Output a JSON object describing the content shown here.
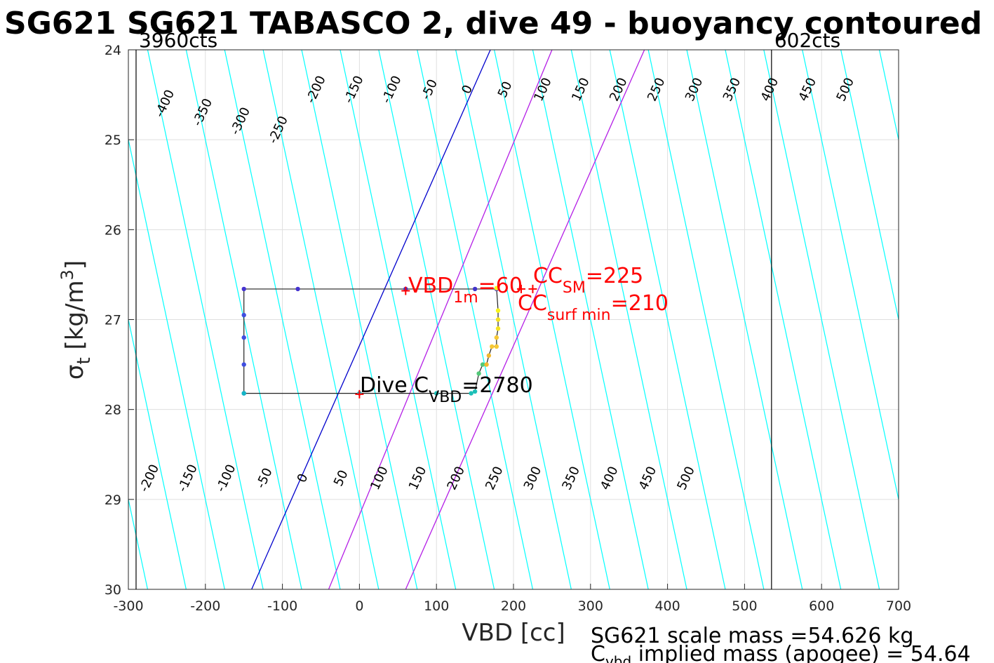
{
  "chart_data": {
    "type": "line",
    "title": "SG621 SG621 TABASCO 2, dive 49 - buoyancy contoured",
    "xlabel": "VBD [cc]",
    "ylabel_main": "σ",
    "ylabel_sub": "t",
    "ylabel_unit_pre": " [kg/m",
    "ylabel_unit_sup": "3",
    "ylabel_unit_post": "]",
    "xlim": [
      -300,
      700
    ],
    "ylim": [
      24,
      30
    ],
    "y_reversed": true,
    "grid": true,
    "xticks": [
      -300,
      -200,
      -100,
      0,
      100,
      200,
      300,
      400,
      500,
      600,
      700
    ],
    "xtick_labels": [
      "-300",
      "-200",
      "-100",
      "0",
      "100",
      "200",
      "300",
      "400",
      "500",
      "600",
      "700"
    ],
    "yticks": [
      24,
      25,
      26,
      27,
      28,
      29,
      30
    ],
    "ytick_labels": [
      "24",
      "25",
      "26",
      "27",
      "28",
      "29",
      "30"
    ],
    "vbd_limits": [
      {
        "x": -290,
        "label": "3960cts"
      },
      {
        "x": 535,
        "label": "602cts"
      }
    ],
    "contour_top_values": [
      -400,
      -350,
      -300,
      -250,
      -200,
      -150,
      -100,
      -50,
      0,
      50,
      100,
      150,
      200,
      250,
      300,
      350,
      400,
      450,
      500
    ],
    "contour_top_labels": [
      "-400",
      "-350",
      "-300",
      "-250",
      "-200",
      "-150",
      "-100",
      "-50",
      "0",
      "50",
      "100",
      "150",
      "200",
      "250",
      "300",
      "350",
      "400",
      "450",
      "500"
    ],
    "contour_bottom_values": [
      -200,
      -150,
      -100,
      -50,
      0,
      50,
      100,
      150,
      200,
      250,
      300,
      350,
      400,
      450,
      500
    ],
    "contour_bottom_labels": [
      "-200",
      "-150",
      "-100",
      "-50",
      "0",
      "50",
      "100",
      "150",
      "200",
      "250",
      "300",
      "350",
      "400",
      "450",
      "500"
    ],
    "contour_x_at_sigma24": [
      -425,
      -375,
      -325,
      -275,
      -225,
      -175,
      -125,
      -75,
      -25,
      25,
      75,
      125,
      175,
      225,
      275,
      325,
      375,
      425,
      475,
      525,
      575,
      625,
      675,
      725
    ],
    "contour_x_at_sigma30": [
      -275,
      -225,
      -175,
      -125,
      -75,
      -25,
      25,
      75,
      125,
      175,
      225,
      275,
      325,
      375,
      425,
      475,
      525,
      575,
      625,
      675,
      725
    ],
    "colors": {
      "contour": "#00ffff",
      "zero_contour": "#0000cc",
      "highlight_contour": "#b41ee6",
      "limit_line": "#000000",
      "marker": "#ff0000",
      "grid": "#dfdfdf"
    },
    "zero_line": {
      "x_sigma24": 170,
      "x_sigma30": -140
    },
    "highlight_lines": [
      {
        "x_sigma24": 250,
        "x_sigma30": -40
      },
      {
        "x_sigma24": 370,
        "x_sigma30": 60
      }
    ],
    "dive_track": {
      "vbd": [
        178,
        150,
        60,
        -80,
        -150,
        -150,
        -150,
        -150,
        -150,
        -150,
        -150,
        0,
        100,
        145,
        150,
        155,
        160,
        165,
        168,
        172,
        178,
        178,
        180,
        180,
        180,
        178
      ],
      "sigma": [
        26.66,
        26.66,
        26.66,
        26.66,
        26.66,
        26.95,
        27.2,
        27.5,
        27.82,
        27.82,
        27.82,
        27.82,
        27.82,
        27.82,
        27.8,
        27.6,
        27.5,
        27.5,
        27.4,
        27.3,
        27.3,
        27.2,
        27.1,
        27.0,
        26.9,
        26.65
      ]
    },
    "markers": [
      {
        "vbd": 60,
        "sigma": 26.68,
        "label": "VBD",
        "label_sub": "1m",
        "value_text": "=60"
      },
      {
        "vbd": 225,
        "sigma": 26.66,
        "label": "CC",
        "label_sub": "SM",
        "value_text": "=225"
      },
      {
        "vbd": 210,
        "sigma": 26.66,
        "label": "CC",
        "label_sub": "surf min",
        "value_text": "=210"
      },
      {
        "vbd": 0,
        "sigma": 27.83,
        "label": "Dive C",
        "label_sub": "VBD",
        "value_text": "=2780"
      }
    ],
    "footer_lines": [
      {
        "text": "SG621 scale mass =54.626 kg"
      },
      {
        "text_pre": "C",
        "text_sub": "vbd",
        "text_post": " implied mass (apogee) = 54.64"
      }
    ]
  }
}
